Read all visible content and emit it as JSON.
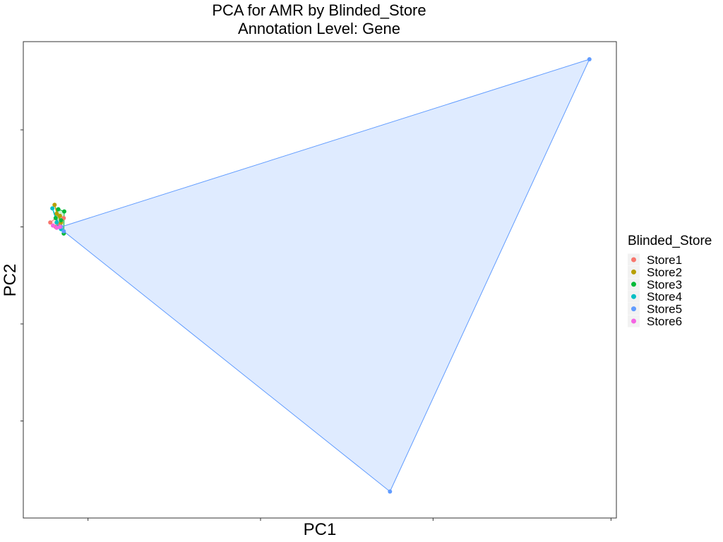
{
  "chart_data": {
    "type": "scatter",
    "title": "PCA for AMR by Blinded_Store",
    "subtitle": "Annotation Level: Gene",
    "xlabel": "PC1",
    "ylabel": "PC2",
    "xlim": [
      -0.05,
      1.05
    ],
    "ylim": [
      -0.06,
      1.02
    ],
    "x_ticks": [
      0.07,
      0.39,
      0.71,
      1.04
    ],
    "y_ticks": [
      0.16,
      0.38,
      0.6,
      0.82
    ],
    "tick_labels_visible": false,
    "grid": false,
    "legend": {
      "title": "Blinded_Store",
      "placement": "right"
    },
    "series": [
      {
        "name": "Store1",
        "color": "#F8766D",
        "points": [
          [
            0.0,
            0.61
          ],
          [
            0.01,
            0.6
          ],
          [
            0.015,
            0.605
          ],
          [
            0.02,
            0.6
          ],
          [
            0.025,
            0.62
          ]
        ],
        "hull": [
          [
            0.0,
            0.61
          ],
          [
            0.015,
            0.625
          ],
          [
            0.025,
            0.62
          ],
          [
            0.02,
            0.6
          ],
          [
            0.01,
            0.598
          ]
        ]
      },
      {
        "name": "Store2",
        "color": "#B79F00",
        "points": [
          [
            0.008,
            0.65
          ],
          [
            0.012,
            0.63
          ],
          [
            0.02,
            0.61
          ],
          [
            0.018,
            0.625
          ]
        ],
        "hull": [
          [
            0.008,
            0.65
          ],
          [
            0.02,
            0.61
          ],
          [
            0.012,
            0.63
          ]
        ]
      },
      {
        "name": "Store3",
        "color": "#00BA38",
        "points": [
          [
            0.015,
            0.64
          ],
          [
            0.026,
            0.635
          ],
          [
            0.025,
            0.585
          ],
          [
            0.01,
            0.62
          ],
          [
            0.02,
            0.615
          ]
        ],
        "hull": [
          [
            0.015,
            0.64
          ],
          [
            0.026,
            0.635
          ],
          [
            0.025,
            0.585
          ],
          [
            0.01,
            0.62
          ]
        ]
      },
      {
        "name": "Store4",
        "color": "#00BFC4",
        "points": [
          [
            0.004,
            0.642
          ],
          [
            0.012,
            0.61
          ],
          [
            0.02,
            0.595
          ],
          [
            0.015,
            0.6
          ]
        ],
        "hull": [
          [
            0.004,
            0.642
          ],
          [
            0.02,
            0.595
          ],
          [
            0.012,
            0.61
          ]
        ]
      },
      {
        "name": "Store5",
        "color": "#619CFF",
        "points": [
          [
            1.0,
            0.98
          ],
          [
            0.63,
            0.0
          ],
          [
            0.025,
            0.59
          ],
          [
            0.02,
            0.6
          ]
        ],
        "hull": [
          [
            1.0,
            0.98
          ],
          [
            0.63,
            0.0
          ],
          [
            0.025,
            0.59
          ],
          [
            0.02,
            0.6
          ]
        ]
      },
      {
        "name": "Store6",
        "color": "#F564E3",
        "points": [
          [
            0.005,
            0.603
          ],
          [
            0.012,
            0.598
          ],
          [
            0.018,
            0.6
          ]
        ],
        "hull": [
          [
            0.005,
            0.603
          ],
          [
            0.012,
            0.598
          ],
          [
            0.018,
            0.6
          ]
        ]
      }
    ]
  }
}
